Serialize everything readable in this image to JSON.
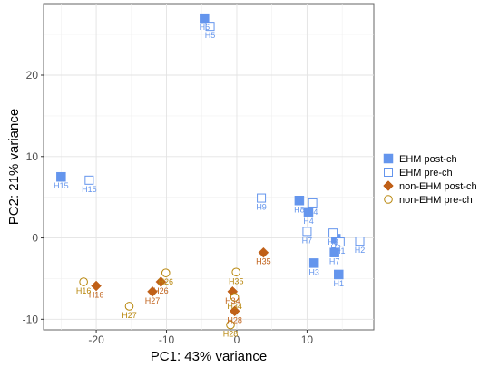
{
  "chart_data": {
    "type": "scatter",
    "title": "",
    "xlabel": "PC1: 43% variance",
    "ylabel": "PC2: 21% variance",
    "xlim": [
      -27.5,
      19.5
    ],
    "ylim": [
      -11.3,
      28.8
    ],
    "x_ticks": [
      -20,
      -10,
      0,
      10
    ],
    "y_ticks": [
      -10,
      0,
      10,
      20
    ],
    "grid": true,
    "legend_position": "right",
    "series": [
      {
        "name": "EHM post-ch",
        "marker": "filled-square",
        "color": "#6495ED",
        "points": [
          {
            "label": "H6",
            "x": -4.6,
            "y": 27.0
          },
          {
            "label": "H15",
            "x": -25.0,
            "y": 7.5
          },
          {
            "label": "H8",
            "x": 8.9,
            "y": 4.6
          },
          {
            "label": "H4",
            "x": 10.2,
            "y": 3.2
          },
          {
            "label": "H3",
            "x": 11.0,
            "y": -3.1
          },
          {
            "label": "H1",
            "x": 14.5,
            "y": -4.5
          },
          {
            "label": "H7",
            "x": 13.9,
            "y": -1.8
          },
          {
            "label": "H2",
            "x": 14.1,
            "y": -0.1
          }
        ]
      },
      {
        "name": "EHM pre-ch",
        "marker": "open-square",
        "color": "#6495ED",
        "points": [
          {
            "label": "H5",
            "x": -3.8,
            "y": 26.0
          },
          {
            "label": "H15",
            "x": -21.0,
            "y": 7.1
          },
          {
            "label": "H9",
            "x": 3.5,
            "y": 4.9
          },
          {
            "label": "H4",
            "x": 10.8,
            "y": 4.3
          },
          {
            "label": "H7",
            "x": 10.0,
            "y": 0.8
          },
          {
            "label": "H3",
            "x": 13.7,
            "y": 0.6
          },
          {
            "label": "H1",
            "x": 14.7,
            "y": -0.5
          },
          {
            "label": "H2",
            "x": 17.5,
            "y": -0.4
          }
        ]
      },
      {
        "name": "non-EHM post-ch",
        "marker": "filled-diamond",
        "color": "#C06018",
        "points": [
          {
            "label": "H35",
            "x": 3.8,
            "y": -1.8
          },
          {
            "label": "H16",
            "x": -20.0,
            "y": -5.9
          },
          {
            "label": "H26",
            "x": -10.8,
            "y": -5.4
          },
          {
            "label": "H27",
            "x": -12.0,
            "y": -6.6
          },
          {
            "label": "H34",
            "x": -0.6,
            "y": -6.6
          },
          {
            "label": "H28",
            "x": -0.3,
            "y": -9.0
          }
        ]
      },
      {
        "name": "non-EHM pre-ch",
        "marker": "open-circle",
        "color": "#B8860B",
        "points": [
          {
            "label": "H16",
            "x": -21.8,
            "y": -5.4
          },
          {
            "label": "H26",
            "x": -10.1,
            "y": -4.3
          },
          {
            "label": "H27",
            "x": -15.3,
            "y": -8.4
          },
          {
            "label": "H35",
            "x": -0.1,
            "y": -4.2
          },
          {
            "label": "H34",
            "x": -0.3,
            "y": -7.3
          },
          {
            "label": "H28",
            "x": -0.9,
            "y": -10.7
          }
        ]
      }
    ],
    "legend": [
      {
        "label": "EHM post-ch",
        "marker": "filled-square",
        "color": "#6495ED"
      },
      {
        "label": "EHM pre-ch",
        "marker": "open-square",
        "color": "#6495ED"
      },
      {
        "label": "non-EHM post-ch",
        "marker": "filled-diamond",
        "color": "#C06018"
      },
      {
        "label": "non-EHM pre-ch",
        "marker": "open-circle",
        "color": "#B8860B"
      }
    ]
  }
}
